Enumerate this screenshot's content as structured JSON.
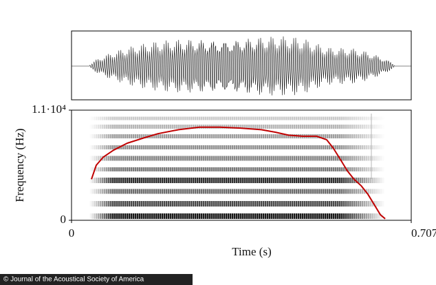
{
  "chart_data": {
    "type": "line",
    "xlabel": "Time (s)",
    "ylabel": "Frequency (Hz)",
    "x": [
      0.0415,
      0.0515,
      0.0659,
      0.0873,
      0.116,
      0.152,
      0.18,
      0.223,
      0.266,
      0.309,
      0.352,
      0.395,
      0.424,
      0.452,
      0.481,
      0.51,
      0.531,
      0.545,
      0.56,
      0.574,
      0.588,
      0.603,
      0.617,
      0.631,
      0.643,
      0.653
    ],
    "values": [
      4100,
      5500,
      6300,
      7000,
      7700,
      8250,
      8650,
      9050,
      9300,
      9300,
      9200,
      9050,
      8800,
      8500,
      8400,
      8400,
      8050,
      7200,
      6050,
      4950,
      4100,
      3450,
      2600,
      1500,
      550,
      150
    ],
    "color": "#c00000",
    "xlim": [
      0,
      0.7072
    ],
    "xticks": [
      0,
      0.7072
    ],
    "ylim": [
      0,
      11000
    ],
    "yticks": [
      0,
      {
        "value": 11000,
        "label": "1.1·10⁴"
      }
    ]
  },
  "credit": "© Journal of the Acoustical Society of America"
}
